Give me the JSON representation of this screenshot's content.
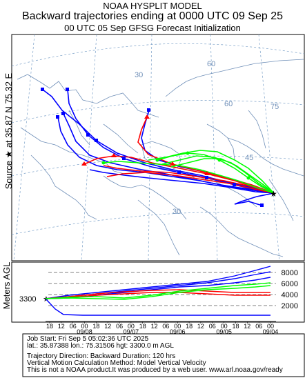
{
  "header": {
    "line1": "NOAA HYSPLIT MODEL",
    "line2": "Backward trajectories ending at 0000 UTC 09 Sep 25",
    "line3": "00 UTC 05 Sep    GFSG  Forecast Initialization"
  },
  "side_label": "Source ★ at   35.87 N   75.32 E",
  "map": {
    "meridian_labels": [
      "30",
      "60",
      "60",
      "75",
      "45",
      "30"
    ],
    "source_marker": "★"
  },
  "vertical": {
    "axis_label": "Meters AGL",
    "start_height_label": "3300",
    "y_ticks": [
      "8000",
      "6000",
      "4000",
      "2000"
    ],
    "x_hour_ticks": [
      "18",
      "12",
      "06",
      "00",
      "18",
      "12",
      "06",
      "00",
      "18",
      "12",
      "06",
      "00",
      "18",
      "12",
      "06",
      "00",
      "18",
      "12",
      "06",
      "00"
    ],
    "x_date_ticks": [
      "09/08",
      "09/07",
      "09/06",
      "09/05",
      "09/04"
    ]
  },
  "footer": {
    "job_start": "Job Start: Fri Sep  5 05:02:36 UTC 2025",
    "source_loc": "lat.: 35.87388   lon.: 75.31506    hgt: 3300.0 m AGL",
    "traj_dir": "Trajectory Direction: Backward      Duration: 120 hrs",
    "vert_method": "Vertical Motion Calculation Method: Model Vertical Velocity",
    "disclaimer": "This is not a NOAA product.It was produced by a web user. www.arl.noaa.gov/ready"
  },
  "colors": {
    "red": "#ff0000",
    "blue": "#0000ff",
    "green": "#00ff00",
    "map_lines": "#6f8fb8",
    "grid_lines": "#7aa0c8"
  }
}
